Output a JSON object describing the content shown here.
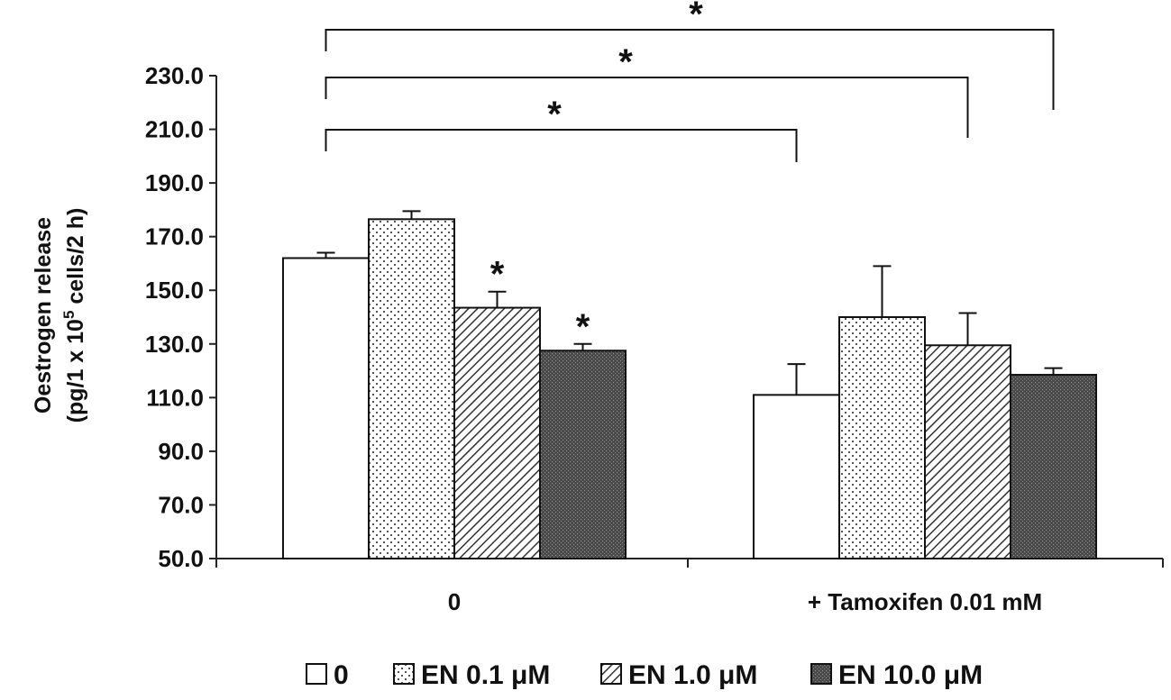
{
  "chart_data": {
    "type": "bar",
    "ylabel_line1": "Oestrogen release",
    "ylabel_line2_prefix": "(pg/1 x 10",
    "ylabel_line2_sup": "5",
    "ylabel_line2_suffix": " cells/2 h)",
    "ylim": [
      50,
      230
    ],
    "yticks": [
      "50.0",
      "70.0",
      "90.0",
      "110.0",
      "130.0",
      "150.0",
      "170.0",
      "190.0",
      "210.0",
      "230.0"
    ],
    "categories": [
      "0",
      "+ Tamoxifen 0.01 mM"
    ],
    "legend_position": "bottom",
    "series": [
      {
        "name": "0",
        "pattern": "white",
        "values": [
          162.0,
          111.0
        ],
        "errors": [
          2.0,
          11.5
        ]
      },
      {
        "name": "EN 0.1 μM",
        "pattern": "dots",
        "values": [
          176.5,
          140.0
        ],
        "errors": [
          3.0,
          19.0
        ]
      },
      {
        "name": "EN 1.0 μM",
        "pattern": "hatch",
        "values": [
          143.5,
          129.5
        ],
        "errors": [
          6.0,
          12.0
        ]
      },
      {
        "name": "EN 10.0 μM",
        "pattern": "dark",
        "values": [
          127.5,
          118.5
        ],
        "errors": [
          2.5,
          2.5
        ]
      }
    ],
    "bar_annotations": [
      {
        "category": 0,
        "series": 2,
        "text": "*"
      },
      {
        "category": 0,
        "series": 3,
        "text": "*"
      }
    ],
    "brackets": [
      {
        "from": {
          "category": 0,
          "series": 0
        },
        "to": {
          "category": 1,
          "series": 0
        },
        "text": "*"
      },
      {
        "from": {
          "category": 0,
          "series": 0
        },
        "to": {
          "category": 1,
          "series": 2
        },
        "text": "*"
      },
      {
        "from": {
          "category": 0,
          "series": 0
        },
        "to": {
          "category": 1,
          "series": 3
        },
        "text": "*"
      }
    ]
  }
}
